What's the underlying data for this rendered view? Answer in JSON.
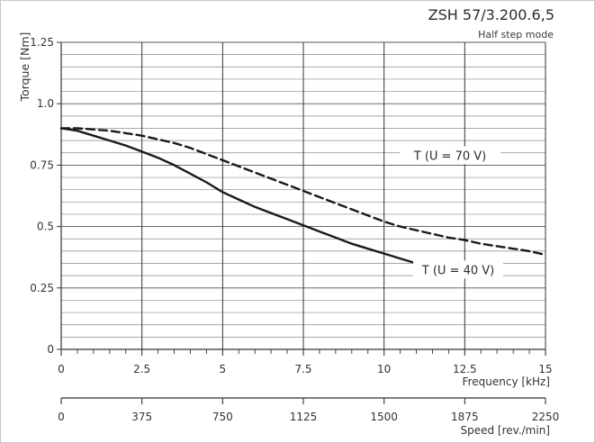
{
  "chart_data": {
    "type": "line",
    "title": "ZSH 57/3.200.6,5",
    "subtitle": "Half step mode",
    "ylabel": "Torque [Nm]",
    "xlabel": "Frequency [kHz]",
    "x2label": "Speed [rev./min]",
    "xlim": [
      0,
      15
    ],
    "ylim": [
      0,
      1.25
    ],
    "x_ticks": [
      "0",
      "2.5",
      "5",
      "7.5",
      "10",
      "12.5",
      "15"
    ],
    "y_ticks": [
      "0",
      "0.25",
      "0.5",
      "0.75",
      "1.0",
      "1.25"
    ],
    "x2_ticks": [
      "0",
      "375",
      "750",
      "1125",
      "1500",
      "1875",
      "2250"
    ],
    "grid": true,
    "series": [
      {
        "name": "T (U = 70 V)",
        "style": "dashed",
        "x": [
          0,
          0.5,
          1,
          1.5,
          2,
          2.5,
          3,
          3.5,
          4,
          4.5,
          5,
          5.5,
          6,
          6.5,
          7,
          7.5,
          8,
          8.5,
          9,
          9.5,
          10,
          10.5,
          11,
          11.5,
          12,
          12.5,
          13,
          13.5,
          14,
          14.5,
          15
        ],
        "y": [
          0.9,
          0.9,
          0.895,
          0.89,
          0.88,
          0.87,
          0.855,
          0.84,
          0.82,
          0.795,
          0.77,
          0.745,
          0.72,
          0.695,
          0.67,
          0.645,
          0.62,
          0.595,
          0.57,
          0.545,
          0.52,
          0.5,
          0.485,
          0.47,
          0.455,
          0.445,
          0.43,
          0.42,
          0.41,
          0.4,
          0.385
        ]
      },
      {
        "name": "T (U = 40 V)",
        "style": "solid",
        "x": [
          0,
          0.5,
          1,
          1.5,
          2,
          2.5,
          3,
          3.5,
          4,
          4.5,
          5,
          5.5,
          6,
          6.5,
          7,
          7.5,
          8,
          8.5,
          9,
          9.5,
          10,
          10.5,
          11,
          11.5,
          11.9
        ],
        "y": [
          0.9,
          0.89,
          0.87,
          0.85,
          0.83,
          0.805,
          0.78,
          0.75,
          0.715,
          0.68,
          0.64,
          0.61,
          0.58,
          0.555,
          0.53,
          0.505,
          0.48,
          0.455,
          0.43,
          0.41,
          0.39,
          0.37,
          0.35,
          0.34,
          0.335
        ]
      }
    ],
    "annotations": [
      "T (U = 70 V)",
      "T (U = 40 V)"
    ]
  }
}
